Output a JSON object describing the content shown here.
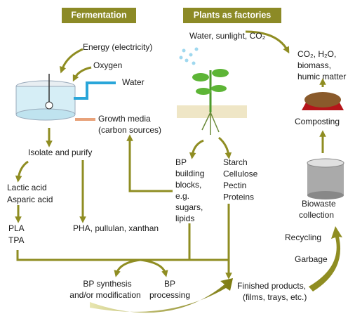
{
  "header": {
    "fermentation": "Fermentation",
    "plants": "Plants as factories"
  },
  "labels": {
    "energy": "Energy (electricity)",
    "oxygen": "Oxygen",
    "water": "Water",
    "growth_media": [
      "Growth media",
      "(carbon sources)"
    ],
    "water_sunlight": "Water, sunlight, CO₂",
    "compost_outputs": [
      "CO₂, H₂O,",
      "biomass,",
      "humic matter"
    ],
    "composting": "Composting",
    "isolate": "Isolate and purify",
    "acids": [
      "Lactic acid",
      "Asparic acid"
    ],
    "pla_tpa": [
      "PLA",
      "TPA"
    ],
    "pha": "PHA, pullulan, xanthan",
    "building_blocks": [
      "BP",
      "building",
      "blocks,",
      "e.g.",
      "sugars,",
      "lipids"
    ],
    "polymers": [
      "Starch",
      "Cellulose",
      "Pectin",
      "Proteins"
    ],
    "biowaste": [
      "Biowaste",
      "collection"
    ],
    "recycling": "Recycling",
    "garbage": "Garbage",
    "synthesis": [
      "BP synthesis",
      "and/or modification"
    ],
    "processing": [
      "BP",
      "processing"
    ],
    "finished": [
      "Finished products,",
      "(films, trays, etc.)"
    ]
  }
}
